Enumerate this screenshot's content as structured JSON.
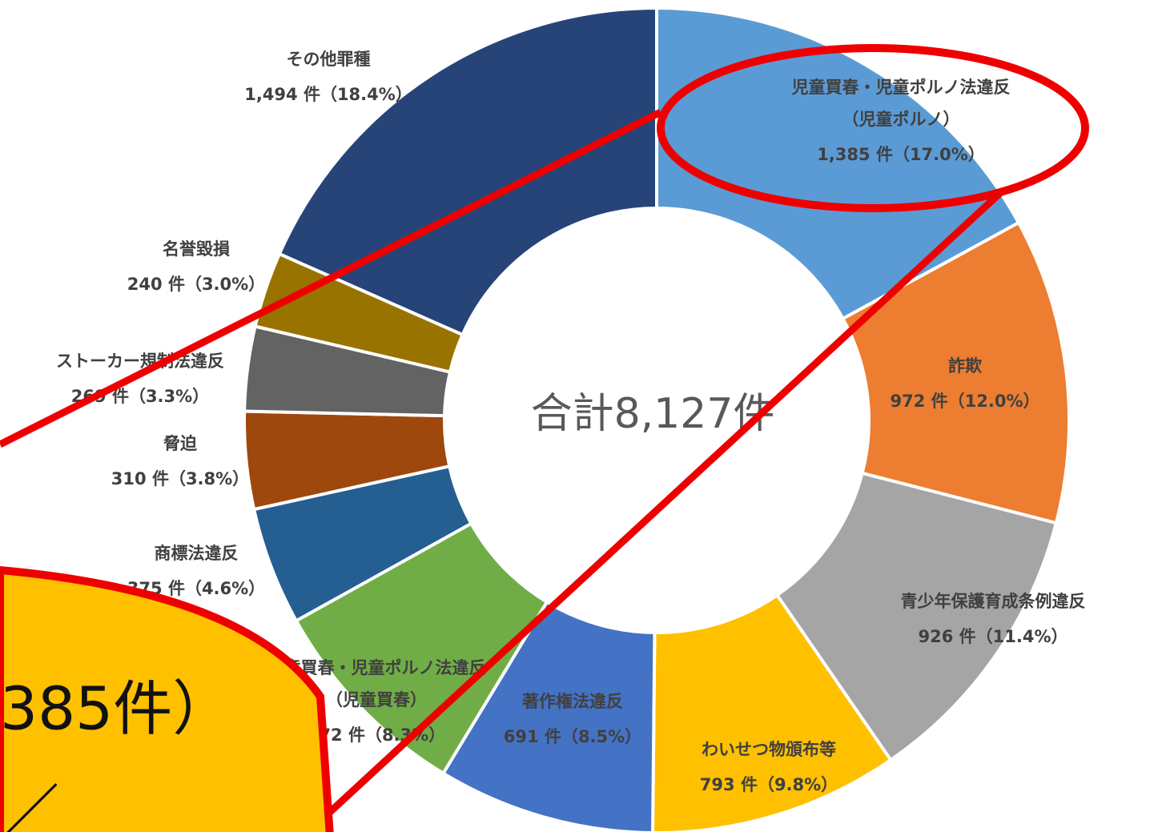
{
  "chart_data": {
    "type": "pie",
    "center_label": "合計8,127件",
    "categories": [
      [
        "児童買春・児童ポルノ法違反",
        "（児童ポルノ）"
      ],
      [
        "詐欺"
      ],
      [
        "青少年保護育成条例違反"
      ],
      [
        "わいせつ物頒布等"
      ],
      [
        "著作権法違反"
      ],
      [
        "児童買春・児童ポルノ法違反",
        "（児童買春）"
      ],
      [
        "商標法違反"
      ],
      [
        "脅迫"
      ],
      [
        "ストーカー規制法違反"
      ],
      [
        "名誉毀損"
      ],
      [
        "その他罪種"
      ]
    ],
    "values": [
      1385,
      972,
      926,
      793,
      691,
      672,
      375,
      310,
      269,
      240,
      1494
    ],
    "value_labels": [
      "1,385 件（17.0%）",
      "972 件（12.0%）",
      "926 件（11.4%）",
      "793 件（9.8%）",
      "691 件（8.5%）",
      "672 件（8.3%）",
      "375 件（4.6%）",
      "310 件（3.8%）",
      "269 件（3.3%）",
      "240 件（3.0%）",
      "1,494 件（18.4%）"
    ],
    "colors": [
      "#5b9bd5",
      "#ed7d31",
      "#a5a5a5",
      "#ffc000",
      "#4472c4",
      "#70ad47",
      "#255e91",
      "#9e480e",
      "#636363",
      "#997300",
      "#264478"
    ],
    "annotations": [
      "385件）",
      "／"
    ]
  }
}
